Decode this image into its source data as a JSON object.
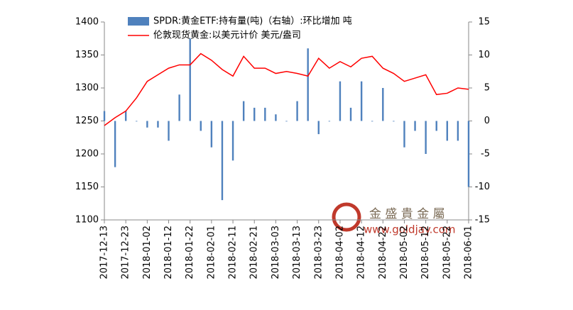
{
  "chart_data": {
    "type": "bar-line",
    "categories": [
      "2017-12-13",
      null,
      "2017-12-23",
      null,
      "2018-01-02",
      null,
      "2018-01-12",
      null,
      "2018-01-22",
      null,
      "2018-02-01",
      null,
      "2018-02-11",
      null,
      "2018-02-21",
      null,
      "2018-03-03",
      null,
      "2018-03-13",
      null,
      "2018-03-23",
      null,
      "2018-04-02",
      null,
      "2018-04-12",
      null,
      "2018-04-22",
      null,
      "2018-05-02",
      null,
      "2018-05-12",
      null,
      "2018-05-22",
      null,
      "2018-06-01"
    ],
    "series": [
      {
        "name": "SPDR:黄金ETF:持有量(吨)（右轴）:环比增加  吨",
        "color": "#4f81bd",
        "axis": "y2",
        "kind": "bar",
        "values": [
          1.5,
          -7,
          1.5,
          0,
          -1,
          -1,
          -3,
          4,
          12.5,
          -1.5,
          -4,
          -12,
          -6,
          3,
          2,
          2,
          1,
          0,
          3,
          11,
          -2,
          0,
          6,
          2,
          6,
          0,
          5,
          0,
          -4,
          -1.5,
          -5,
          -1.5,
          -3,
          -3,
          -10
        ]
      },
      {
        "name": "伦敦现货黄金:以美元计价  美元/盎司",
        "color": "#ff0000",
        "axis": "y",
        "kind": "line",
        "values": [
          1243,
          1255,
          1265,
          1285,
          1310,
          1320,
          1330,
          1335,
          1335,
          1352,
          1342,
          1328,
          1318,
          1348,
          1330,
          1330,
          1322,
          1325,
          1322,
          1318,
          1345,
          1330,
          1340,
          1332,
          1345,
          1348,
          1330,
          1322,
          1310,
          1315,
          1320,
          1290,
          1292,
          1300,
          1298
        ]
      }
    ],
    "ylim": [
      1100,
      1400
    ],
    "yticks": [
      1100,
      1150,
      1200,
      1250,
      1300,
      1350,
      1400
    ],
    "y2lim": [
      -15,
      15
    ],
    "y2ticks": [
      -15,
      -10,
      -5,
      0,
      5,
      10,
      15
    ],
    "watermark": {
      "name": "金 盛 貴 金 屬",
      "url": "www.goldjay.com"
    }
  }
}
